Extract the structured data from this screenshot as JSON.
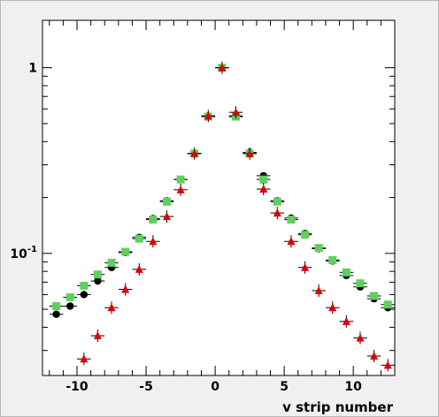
{
  "chart_data": {
    "type": "scatter",
    "title": "",
    "xlabel": "v strip number",
    "ylabel": "",
    "xlim": [
      -12.5,
      13.0
    ],
    "ylim": [
      0.022,
      1.8
    ],
    "yscale": "log",
    "grid": false,
    "legend": "none",
    "x_ticks": [
      -10,
      -5,
      0,
      5,
      10
    ],
    "x_tick_labels": [
      "-10",
      "-5",
      "0",
      "5",
      "10"
    ],
    "y_major_ticks": [
      {
        "value": 0.1,
        "base": "10",
        "exp": "-1"
      },
      {
        "value": 1,
        "base": "1",
        "exp": ""
      }
    ],
    "series": [
      {
        "marker": "circle",
        "color": "#000000",
        "x": [
          -11.5,
          -10.5,
          -9.5,
          -8.5,
          -7.5,
          -6.5,
          -5.5,
          -4.5,
          -3.5,
          -2.5,
          -1.5,
          -0.5,
          0.5,
          1.5,
          2.5,
          3.5,
          4.5,
          5.5,
          6.5,
          7.5,
          8.5,
          9.5,
          10.5,
          11.5,
          12.5
        ],
        "values": [
          0.047,
          0.052,
          0.06,
          0.071,
          0.084,
          0.101,
          0.122,
          0.154,
          0.192,
          0.25,
          0.345,
          0.55,
          1.0,
          0.55,
          0.35,
          0.262,
          0.192,
          0.155,
          0.128,
          0.106,
          0.091,
          0.076,
          0.066,
          0.057,
          0.051
        ]
      },
      {
        "marker": "square",
        "color": "#5fcf5f",
        "x": [
          -11.5,
          -10.5,
          -9.5,
          -8.5,
          -7.5,
          -6.5,
          -5.5,
          -4.5,
          -3.5,
          -2.5,
          -1.5,
          -0.5,
          0.5,
          1.5,
          2.5,
          3.5,
          4.5,
          5.5,
          6.5,
          7.5,
          8.5,
          9.5,
          10.5,
          11.5,
          12.5
        ],
        "values": [
          0.052,
          0.058,
          0.067,
          0.077,
          0.089,
          0.102,
          0.12,
          0.152,
          0.19,
          0.25,
          0.345,
          0.545,
          1.0,
          0.545,
          0.345,
          0.25,
          0.19,
          0.152,
          0.126,
          0.107,
          0.092,
          0.079,
          0.069,
          0.059,
          0.053
        ]
      },
      {
        "marker": "triangle",
        "color": "#e00000",
        "x": [
          -9.5,
          -8.5,
          -7.5,
          -6.5,
          -5.5,
          -4.5,
          -3.5,
          -2.5,
          -1.5,
          -0.5,
          0.5,
          1.5,
          2.5,
          3.5,
          4.5,
          5.5,
          6.5,
          7.5,
          8.5,
          9.5,
          10.5,
          11.5,
          12.5
        ],
        "values": [
          0.027,
          0.036,
          0.051,
          0.064,
          0.082,
          0.116,
          0.158,
          0.22,
          0.345,
          0.55,
          1.0,
          0.575,
          0.345,
          0.222,
          0.165,
          0.116,
          0.084,
          0.063,
          0.051,
          0.043,
          0.035,
          0.028,
          0.025
        ]
      }
    ]
  }
}
